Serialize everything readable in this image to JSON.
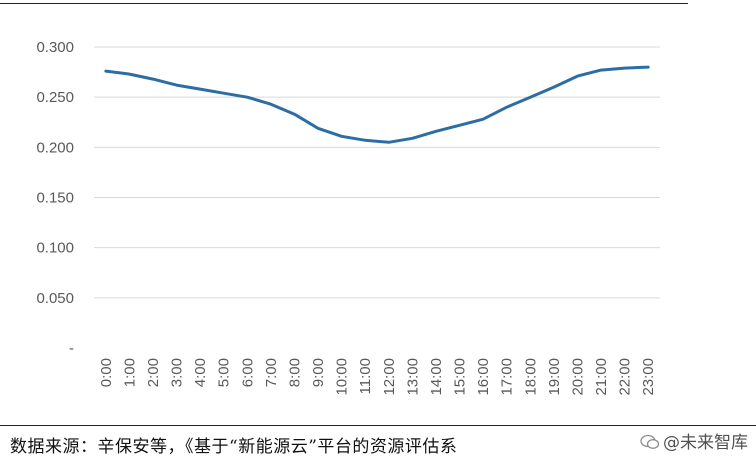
{
  "chart_data": {
    "type": "line",
    "categories": [
      "0:00",
      "1:00",
      "2:00",
      "3:00",
      "4:00",
      "5:00",
      "6:00",
      "7:00",
      "8:00",
      "9:00",
      "10:00",
      "11:00",
      "12:00",
      "13:00",
      "14:00",
      "15:00",
      "16:00",
      "17:00",
      "18:00",
      "19:00",
      "20:00",
      "21:00",
      "22:00",
      "23:00"
    ],
    "series": [
      {
        "values": [
          0.276,
          0.273,
          0.268,
          0.262,
          0.258,
          0.254,
          0.25,
          0.243,
          0.233,
          0.219,
          0.211,
          0.207,
          0.205,
          0.209,
          0.216,
          0.222,
          0.228,
          0.24,
          0.25,
          0.26,
          0.271,
          0.277,
          0.279,
          0.28
        ]
      }
    ],
    "y_ticks": [
      "-",
      "0.050",
      "0.100",
      "0.150",
      "0.200",
      "0.250",
      "0.300"
    ],
    "ylim": [
      0,
      0.3
    ],
    "grid": true,
    "line_color": "#2E6DA4"
  },
  "footer": {
    "source": "数据来源：辛保安等，《基于“新能源云”平台的资源评估系",
    "watermark": "@未来智库"
  }
}
